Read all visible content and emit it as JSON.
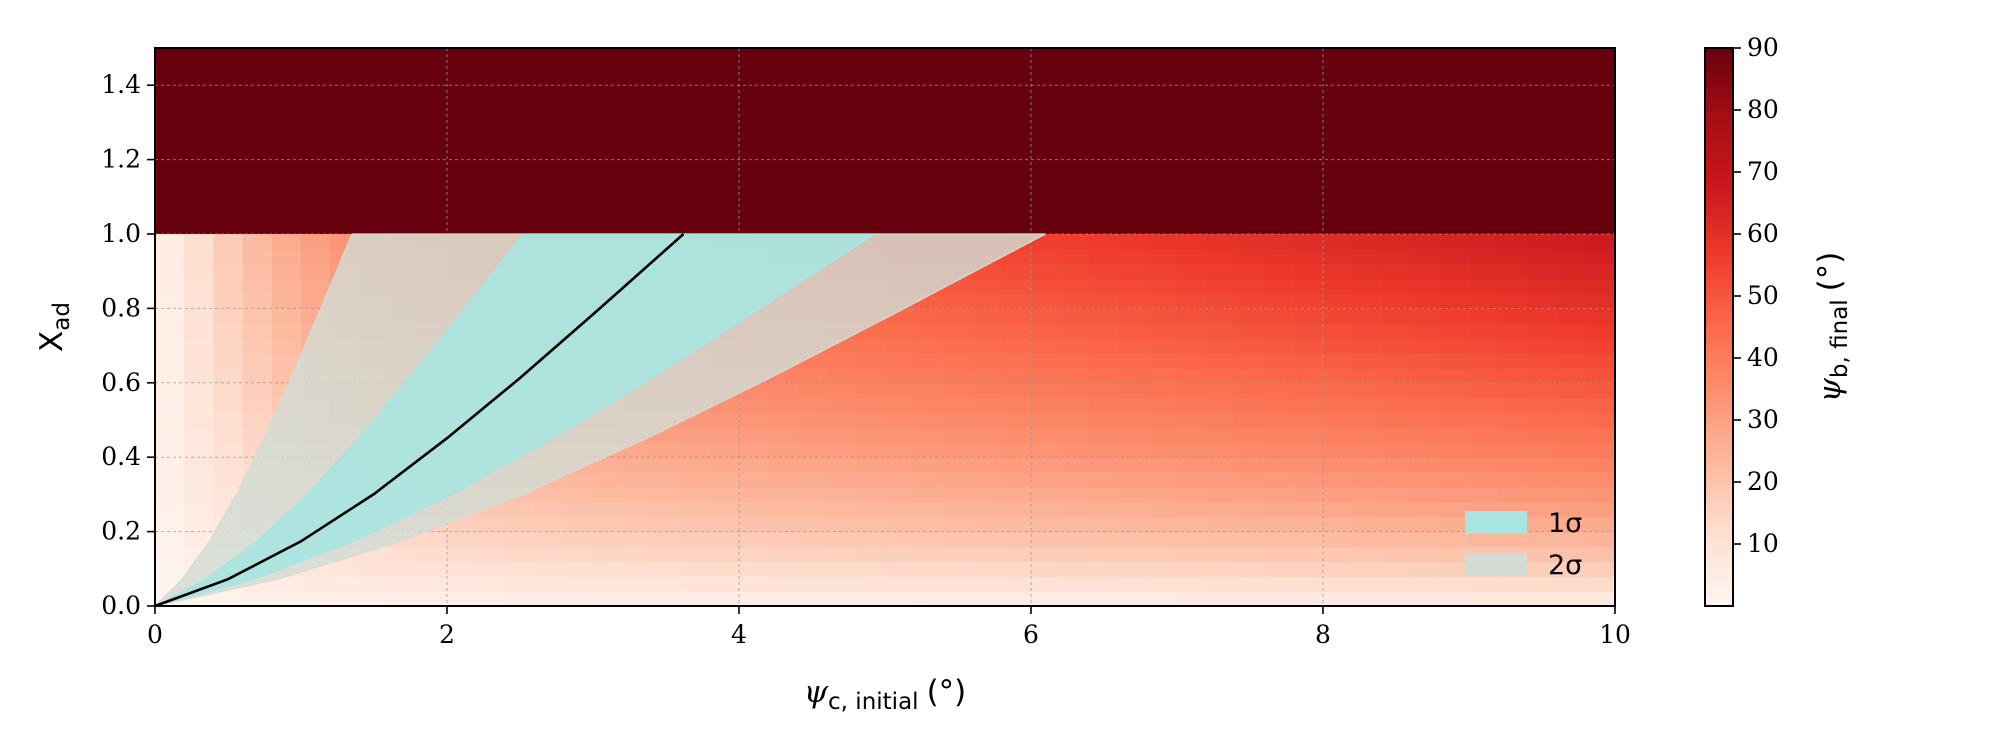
{
  "chart_data": {
    "type": "heatmap",
    "x": {
      "label_symbol": "ψ",
      "label_sub": "c, initial",
      "label_unit": "(°)",
      "range": [
        0,
        10
      ],
      "ticks": [
        0,
        2,
        4,
        6,
        8,
        10
      ],
      "tick_labels": [
        "0",
        "2",
        "4",
        "6",
        "8",
        "10"
      ]
    },
    "y": {
      "label_main": "X",
      "label_sub": "ad",
      "range": [
        0,
        1.5
      ],
      "ticks": [
        0.0,
        0.2,
        0.4,
        0.6,
        0.8,
        1.0,
        1.2,
        1.4
      ],
      "tick_labels": [
        "0.0",
        "0.2",
        "0.4",
        "0.6",
        "0.8",
        "1.0",
        "1.2",
        "1.4"
      ]
    },
    "colorbar": {
      "label_symbol": "ψ",
      "label_sub": "b, final",
      "label_unit": "(°)",
      "range": [
        0,
        90
      ],
      "ticks": [
        10,
        20,
        30,
        40,
        50,
        60,
        70,
        80,
        90
      ],
      "tick_labels": [
        "10",
        "20",
        "30",
        "40",
        "50",
        "60",
        "70",
        "80",
        "90"
      ],
      "colormap": "Reds"
    },
    "saturated_region": {
      "y_min": 1.0,
      "y_max": 1.5,
      "value": 90
    },
    "central_curve": {
      "x": [
        0,
        0.5,
        1.0,
        1.5,
        2.0,
        2.5,
        3.0,
        3.62
      ],
      "y": [
        0,
        0.072,
        0.174,
        0.301,
        0.451,
        0.613,
        0.784,
        1.0
      ],
      "color": "#000000"
    },
    "bands": [
      {
        "name": "1σ",
        "x_left_at_top": 2.52,
        "x_right_at_top": 4.93,
        "color": "#a8e4e0"
      },
      {
        "name": "2σ",
        "x_left_at_top": 1.35,
        "x_right_at_top": 6.1,
        "color": "#d2dcd4"
      }
    ],
    "grid": true,
    "legend_position": "lower-right"
  }
}
